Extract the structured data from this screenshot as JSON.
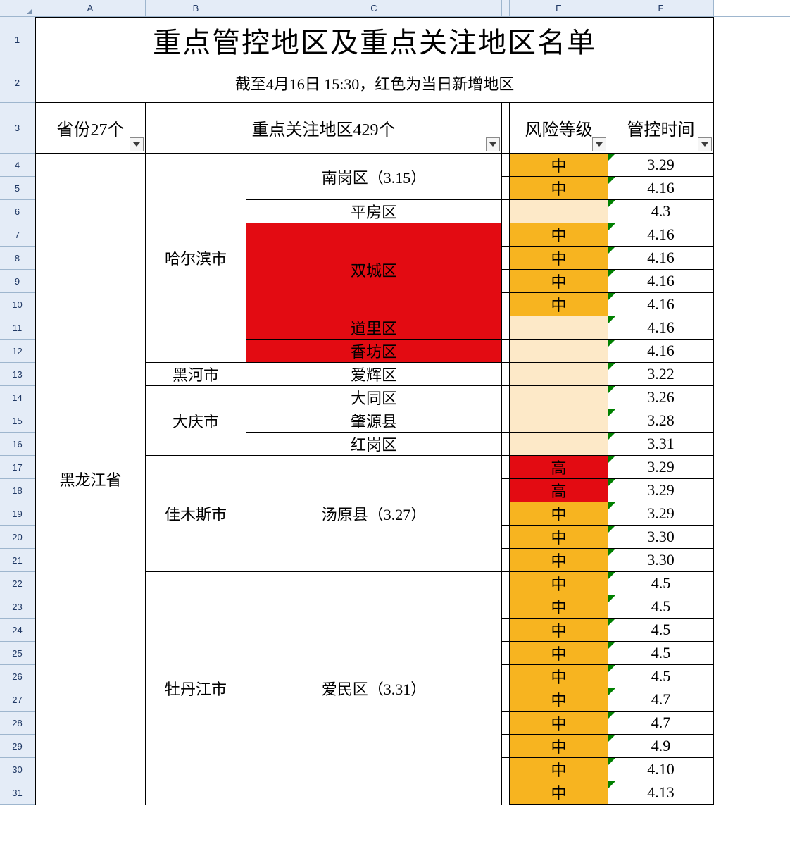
{
  "colors": {
    "header_bg": "#e4ecf7",
    "red": "#e30b12",
    "orange": "#f7b420",
    "pale": "#fde9c8",
    "border": "#000000",
    "grid_border": "#9eb6ce",
    "green_tri": "#008000"
  },
  "dimensions": {
    "row_num_w": 50,
    "row1_h": 66,
    "row2_h": 56,
    "row3_h": 72,
    "data_row_h": 33,
    "colA_w": 157,
    "colB_w": 143,
    "colC_w": 363,
    "gap_w": 11,
    "colE_w": 140,
    "colF_w": 150
  },
  "col_letters": [
    "A",
    "B",
    "C",
    "E",
    "F"
  ],
  "title": "重点管控地区及重点关注地区名单",
  "subtitle": "截至4月16日 15:30，红色为当日新增地区",
  "headers": {
    "col_a": "省份27个",
    "col_bc": "重点关注地区429个",
    "col_e": "风险等级",
    "col_f": "管控时间"
  },
  "province": "黑龙江省",
  "cities": [
    {
      "name": "哈尔滨市",
      "span": 9
    },
    {
      "name": "黑河市",
      "span": 1
    },
    {
      "name": "大庆市",
      "span": 3
    },
    {
      "name": "佳木斯市",
      "span": 5
    },
    {
      "name": "牡丹江市",
      "span": 10
    }
  ],
  "districts": [
    {
      "name": "南岗区（3.15）",
      "span": 2,
      "bg": "none",
      "fg": "#000"
    },
    {
      "name": "平房区",
      "span": 1,
      "bg": "none",
      "fg": "#000"
    },
    {
      "name": "双城区",
      "span": 4,
      "bg": "red",
      "fg": "#000"
    },
    {
      "name": "道里区",
      "span": 1,
      "bg": "red",
      "fg": "#000"
    },
    {
      "name": "香坊区",
      "span": 1,
      "bg": "red",
      "fg": "#000"
    },
    {
      "name": "爱辉区",
      "span": 1,
      "bg": "none",
      "fg": "#000"
    },
    {
      "name": "大同区",
      "span": 1,
      "bg": "none",
      "fg": "#000"
    },
    {
      "name": "肇源县",
      "span": 1,
      "bg": "none",
      "fg": "#000"
    },
    {
      "name": "红岗区",
      "span": 1,
      "bg": "none",
      "fg": "#000"
    },
    {
      "name": "汤原县（3.27）",
      "span": 5,
      "bg": "none",
      "fg": "#000"
    },
    {
      "name": "爱民区（3.31）",
      "span": 10,
      "bg": "none",
      "fg": "#000"
    }
  ],
  "risk": [
    {
      "v": "中",
      "bg": "orange"
    },
    {
      "v": "中",
      "bg": "orange"
    },
    {
      "v": "",
      "bg": "pale"
    },
    {
      "v": "中",
      "bg": "orange"
    },
    {
      "v": "中",
      "bg": "orange"
    },
    {
      "v": "中",
      "bg": "orange"
    },
    {
      "v": "中",
      "bg": "orange"
    },
    {
      "v": "",
      "bg": "pale"
    },
    {
      "v": "",
      "bg": "pale"
    },
    {
      "v": "",
      "bg": "pale"
    },
    {
      "v": "",
      "bg": "pale"
    },
    {
      "v": "",
      "bg": "pale"
    },
    {
      "v": "",
      "bg": "pale"
    },
    {
      "v": "高",
      "bg": "red"
    },
    {
      "v": "高",
      "bg": "red"
    },
    {
      "v": "中",
      "bg": "orange"
    },
    {
      "v": "中",
      "bg": "orange"
    },
    {
      "v": "中",
      "bg": "orange"
    },
    {
      "v": "中",
      "bg": "orange"
    },
    {
      "v": "中",
      "bg": "orange"
    },
    {
      "v": "中",
      "bg": "orange"
    },
    {
      "v": "中",
      "bg": "orange"
    },
    {
      "v": "中",
      "bg": "orange"
    },
    {
      "v": "中",
      "bg": "orange"
    },
    {
      "v": "中",
      "bg": "orange"
    },
    {
      "v": "中",
      "bg": "orange"
    },
    {
      "v": "中",
      "bg": "orange"
    },
    {
      "v": "中",
      "bg": "orange"
    }
  ],
  "dates": [
    "3.29",
    "4.16",
    "4.3",
    "4.16",
    "4.16",
    "4.16",
    "4.16",
    "4.16",
    "4.16",
    "3.22",
    "3.26",
    "3.28",
    "3.31",
    "3.29",
    "3.29",
    "3.29",
    "3.30",
    "3.30",
    "4.5",
    "4.5",
    "4.5",
    "4.5",
    "4.5",
    "4.7",
    "4.7",
    "4.9",
    "4.10",
    "4.13"
  ],
  "row_start": 4,
  "row_end": 31
}
